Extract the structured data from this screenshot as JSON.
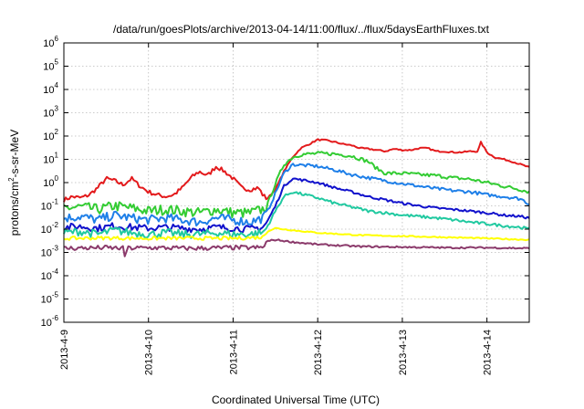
{
  "chart_data": {
    "type": "line",
    "title": "/data/run/goesPlots/archive/2013-04-14/11:00/flux/../flux/5daysEarthFluxes.txt",
    "xlabel": "Coordinated Universal Time (UTC)",
    "ylabel": {
      "prefix": "protons/cm",
      "sup": "2",
      "suffix": "-s-sr-MeV"
    },
    "yscale": "log",
    "ylim": [
      1e-06,
      1000000.0
    ],
    "xlim": [
      0,
      5.5
    ],
    "x_unit": "days since 2013-4-9 00:00 UTC",
    "grid": true,
    "x_ticks": [
      {
        "x": 0,
        "label": "2013-4-9"
      },
      {
        "x": 1,
        "label": "2013-4-10"
      },
      {
        "x": 2,
        "label": "2013-4-11"
      },
      {
        "x": 3,
        "label": "2013-4-12"
      },
      {
        "x": 4,
        "label": "2013-4-13"
      },
      {
        "x": 5,
        "label": "2013-4-14"
      }
    ],
    "y_ticks": [
      {
        "exp": -6,
        "label": "10",
        "sup": "-6"
      },
      {
        "exp": -5,
        "label": "10",
        "sup": "-5"
      },
      {
        "exp": -4,
        "label": "10",
        "sup": "-4"
      },
      {
        "exp": -3,
        "label": "10",
        "sup": "-3"
      },
      {
        "exp": -2,
        "label": "10",
        "sup": "-2"
      },
      {
        "exp": -1,
        "label": "10",
        "sup": "-1"
      },
      {
        "exp": 0,
        "label": "10",
        "sup": "0"
      },
      {
        "exp": 1,
        "label": "10",
        "sup": "1"
      },
      {
        "exp": 2,
        "label": "10",
        "sup": "2"
      },
      {
        "exp": 3,
        "label": "10",
        "sup": "3"
      },
      {
        "exp": 4,
        "label": "10",
        "sup": "4"
      },
      {
        "exp": 5,
        "label": "10",
        "sup": "5"
      },
      {
        "exp": 6,
        "label": "10",
        "sup": "6"
      }
    ],
    "series": [
      {
        "color": "#e31a1c",
        "noise": 0.18,
        "x": [
          0,
          0.1,
          0.2,
          0.3,
          0.4,
          0.5,
          0.6,
          0.7,
          0.8,
          0.9,
          1.0,
          1.1,
          1.2,
          1.3,
          1.4,
          1.5,
          1.6,
          1.7,
          1.8,
          1.9,
          2.0,
          2.1,
          2.2,
          2.3,
          2.35,
          2.4,
          2.5,
          2.6,
          2.7,
          2.8,
          2.9,
          3.0,
          3.1,
          3.2,
          3.3,
          3.4,
          3.5,
          3.6,
          3.7,
          3.8,
          3.9,
          4.0,
          4.1,
          4.2,
          4.3,
          4.4,
          4.5,
          4.6,
          4.7,
          4.8,
          4.9,
          4.92,
          4.95,
          5.0,
          5.05,
          5.1,
          5.2,
          5.3,
          5.4,
          5.5
        ],
        "y": [
          0.18,
          0.25,
          0.22,
          0.3,
          0.6,
          1.5,
          1.2,
          0.8,
          1.5,
          0.7,
          0.4,
          0.3,
          0.25,
          0.3,
          0.6,
          1.6,
          3.0,
          2.0,
          5.0,
          3.0,
          1.5,
          0.6,
          0.5,
          0.6,
          0.3,
          0.2,
          0.5,
          3.0,
          12,
          30,
          45,
          70,
          65,
          55,
          45,
          40,
          30,
          28,
          25,
          22,
          28,
          25,
          25,
          30,
          30,
          22,
          22,
          20,
          20,
          22,
          22,
          60,
          40,
          20,
          15,
          12,
          10,
          8,
          6,
          4.5
        ]
      },
      {
        "color": "#33cc33",
        "noise": 0.45,
        "x": [
          0,
          0.2,
          0.4,
          0.6,
          0.8,
          1.0,
          1.2,
          1.4,
          1.6,
          1.8,
          2.0,
          2.2,
          2.35,
          2.4,
          2.5,
          2.6,
          2.7,
          2.8,
          3.0,
          3.2,
          3.4,
          3.6,
          3.7,
          3.8,
          4.0,
          4.2,
          4.4,
          4.6,
          4.8,
          5.0,
          5.2,
          5.4,
          5.5
        ],
        "y": [
          0.08,
          0.09,
          0.07,
          0.1,
          0.08,
          0.06,
          0.07,
          0.06,
          0.05,
          0.07,
          0.05,
          0.05,
          0.07,
          0.1,
          0.9,
          6,
          12,
          16,
          18,
          17,
          14,
          8,
          4,
          2.5,
          2.5,
          2.2,
          2.0,
          1.6,
          1.4,
          1.0,
          0.7,
          0.5,
          0.4
        ]
      },
      {
        "color": "#1e7fe8",
        "noise": 0.4,
        "x": [
          0,
          0.2,
          0.4,
          0.6,
          0.8,
          1.0,
          1.2,
          1.4,
          1.6,
          1.8,
          2.0,
          2.2,
          2.35,
          2.4,
          2.5,
          2.6,
          2.7,
          3.0,
          3.2,
          3.4,
          3.6,
          3.8,
          4.0,
          4.2,
          4.4,
          4.6,
          4.8,
          5.0,
          5.2,
          5.4,
          5.5
        ],
        "y": [
          0.03,
          0.035,
          0.025,
          0.04,
          0.03,
          0.025,
          0.03,
          0.025,
          0.02,
          0.03,
          0.025,
          0.02,
          0.03,
          0.05,
          0.35,
          2.5,
          6,
          5,
          3.5,
          2.2,
          1.6,
          1.2,
          0.9,
          0.7,
          0.55,
          0.45,
          0.4,
          0.3,
          0.25,
          0.2,
          0.12
        ]
      },
      {
        "color": "#1111cc",
        "noise": 0.3,
        "x": [
          0,
          0.2,
          0.4,
          0.6,
          0.8,
          1.0,
          1.2,
          1.4,
          1.6,
          1.8,
          2.0,
          2.2,
          2.35,
          2.4,
          2.5,
          2.6,
          2.7,
          3.0,
          3.2,
          3.4,
          3.6,
          3.8,
          4.0,
          4.2,
          4.4,
          4.6,
          4.8,
          5.0,
          5.2,
          5.4,
          5.5
        ],
        "y": [
          0.012,
          0.013,
          0.011,
          0.014,
          0.012,
          0.011,
          0.012,
          0.011,
          0.01,
          0.012,
          0.011,
          0.01,
          0.012,
          0.02,
          0.1,
          0.7,
          1.5,
          1.0,
          0.6,
          0.4,
          0.25,
          0.18,
          0.13,
          0.1,
          0.08,
          0.07,
          0.06,
          0.05,
          0.04,
          0.035,
          0.03
        ]
      },
      {
        "color": "#20c9a0",
        "noise": 0.35,
        "x": [
          0,
          0.2,
          0.4,
          0.6,
          0.8,
          1.0,
          1.2,
          1.4,
          1.6,
          1.8,
          2.0,
          2.2,
          2.35,
          2.4,
          2.5,
          2.6,
          2.7,
          3.0,
          3.2,
          3.4,
          3.6,
          3.8,
          4.0,
          4.2,
          4.4,
          4.6,
          4.8,
          5.0,
          5.2,
          5.4,
          5.5
        ],
        "y": [
          0.007,
          0.008,
          0.006,
          0.009,
          0.007,
          0.006,
          0.007,
          0.006,
          0.006,
          0.007,
          0.006,
          0.006,
          0.007,
          0.012,
          0.06,
          0.25,
          0.4,
          0.22,
          0.13,
          0.09,
          0.06,
          0.05,
          0.04,
          0.035,
          0.03,
          0.025,
          0.02,
          0.017,
          0.014,
          0.012,
          0.01
        ]
      },
      {
        "color": "#ffff00",
        "noise": 0.15,
        "x": [
          0,
          0.5,
          1.0,
          1.5,
          2.0,
          2.35,
          2.4,
          2.5,
          2.7,
          3.0,
          3.5,
          4.0,
          4.5,
          5.0,
          5.5
        ],
        "y": [
          0.004,
          0.0042,
          0.004,
          0.0041,
          0.004,
          0.0045,
          0.008,
          0.011,
          0.009,
          0.007,
          0.0055,
          0.005,
          0.0045,
          0.004,
          0.0035
        ]
      },
      {
        "color": "#8b3a6b",
        "noise": 0.2,
        "x": [
          0,
          0.5,
          0.7,
          0.72,
          0.75,
          1.0,
          1.5,
          2.0,
          2.35,
          2.4,
          2.5,
          2.7,
          3.0,
          3.5,
          4.0,
          4.5,
          5.0,
          5.5
        ],
        "y": [
          0.0015,
          0.0016,
          0.0015,
          0.0007,
          0.0015,
          0.0016,
          0.0015,
          0.0016,
          0.0016,
          0.003,
          0.0035,
          0.0028,
          0.0022,
          0.0018,
          0.0017,
          0.0016,
          0.0016,
          0.0015
        ]
      }
    ]
  }
}
